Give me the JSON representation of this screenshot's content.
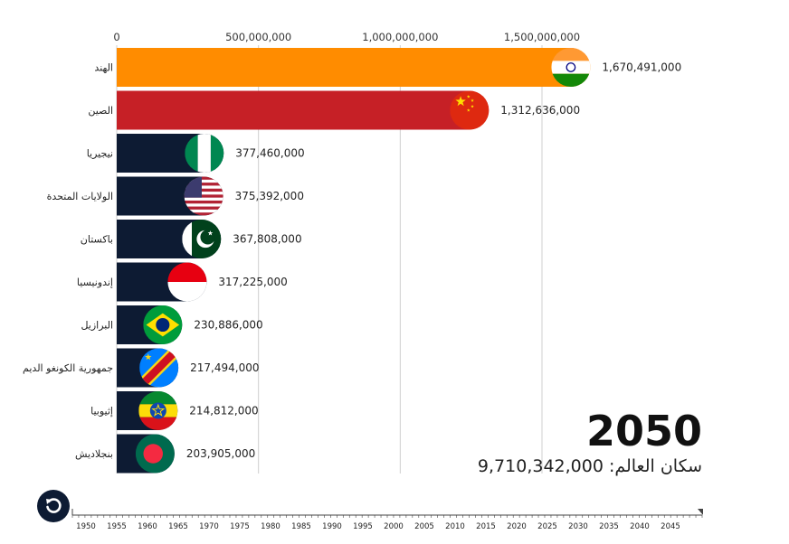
{
  "chart_data": {
    "type": "bar",
    "orientation": "horizontal",
    "categories": [
      "الهند",
      "الصين",
      "نيجيريا",
      "الولايات المتحدة",
      "باكستان",
      "إندونيسيا",
      "البرازيل",
      "جمهورية الكونغو الديم",
      "إثيوبيا",
      "بنجلاديش"
    ],
    "values": [
      1670491000,
      1312636000,
      377460000,
      375392000,
      367808000,
      317225000,
      230886000,
      217494000,
      214812000,
      203905000
    ],
    "value_labels": [
      "1,670,491,000",
      "1,312,636,000",
      "377,460,000",
      "375,392,000",
      "367,808,000",
      "317,225,000",
      "230,886,000",
      "217,494,000",
      "214,812,000",
      "203,905,000"
    ],
    "bar_colors": [
      "#ff8c00",
      "#c62026",
      "#0d1b33",
      "#0d1b33",
      "#0d1b33",
      "#0d1b33",
      "#0d1b33",
      "#0d1b33",
      "#0d1b33",
      "#0d1b33"
    ],
    "flags": [
      "india-flag-icon",
      "china-flag-icon",
      "nigeria-flag-icon",
      "usa-flag-icon",
      "pakistan-flag-icon",
      "indonesia-flag-icon",
      "brazil-flag-icon",
      "drc-flag-icon",
      "ethiopia-flag-icon",
      "bangladesh-flag-icon"
    ],
    "x_ticks": [
      0,
      500000000,
      1000000000,
      1500000000
    ],
    "x_tick_labels": [
      "0",
      "500,000,000",
      "1,000,000,000",
      "1,500,000,000"
    ],
    "xlim": [
      0,
      1700000000
    ],
    "grid": true,
    "axis_position": "top"
  },
  "current_year": "2050",
  "world_population": {
    "label": "سكان العالم:",
    "value": "9,710,342,000"
  },
  "timeline": {
    "years": [
      "1950",
      "1955",
      "1960",
      "1965",
      "1970",
      "1975",
      "1980",
      "1985",
      "1990",
      "1995",
      "2000",
      "2005",
      "2010",
      "2015",
      "2020",
      "2025",
      "2030",
      "2035",
      "2040",
      "2045"
    ]
  },
  "replay_icon": "replay-icon"
}
